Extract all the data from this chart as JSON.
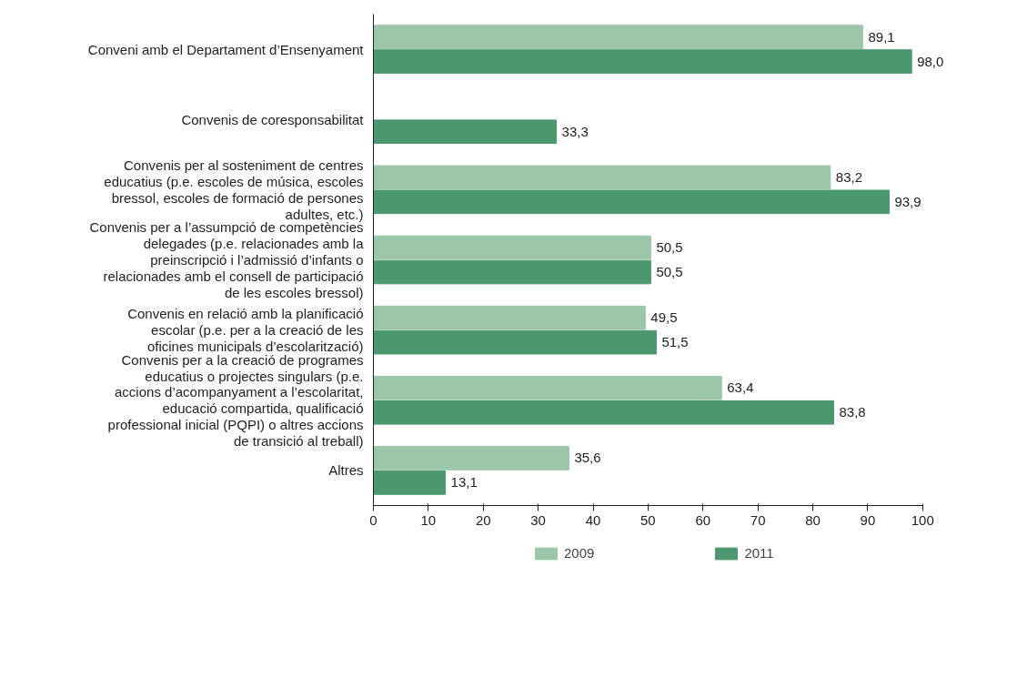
{
  "chart_data": {
    "type": "bar",
    "orientation": "horizontal",
    "categories": [
      "Conveni amb el Departament d’Ensenyament",
      "Convenis de coresponsabilitat",
      "Convenis per al sosteniment de centres educatius (p.e. escoles de música, escoles bressol, escoles de formació de persones adultes, etc.)",
      "Convenis per a l’assumpció de competències delegades (p.e. relacionades amb la preinscripció i l’admissió d’infants o relacionades amb el consell de participació de les escoles bressol)",
      "Convenis en relació amb la planificació escolar (p.e. per a la creació de les oficines municipals d’escolarització)",
      "Convenis per a la creació de programes educatius o projectes singulars (p.e. accions d’acompanyament a l’escolaritat, educació compartida, qualificació professional inicial (PQPI) o altres accions de transició al treball)",
      "Altres"
    ],
    "series": [
      {
        "name": "2009",
        "color": "#9cc6a9",
        "values": [
          89.1,
          null,
          83.2,
          50.5,
          49.5,
          63.4,
          35.6
        ],
        "value_labels": [
          "89,1",
          null,
          "83,2",
          "50,5",
          "49,5",
          "63,4",
          "35,6"
        ]
      },
      {
        "name": "2011",
        "color": "#4b9770",
        "values": [
          98.0,
          33.3,
          93.9,
          50.5,
          51.5,
          83.8,
          13.1
        ],
        "value_labels": [
          "98,0",
          "33,3",
          "93,9",
          "50,5",
          "51,5",
          "83,8",
          "13,1"
        ]
      }
    ],
    "xlim": [
      0,
      100
    ],
    "xticks": [
      0,
      10,
      20,
      30,
      40,
      50,
      60,
      70,
      80,
      90,
      100
    ],
    "legend": "bottom",
    "grid": false
  }
}
